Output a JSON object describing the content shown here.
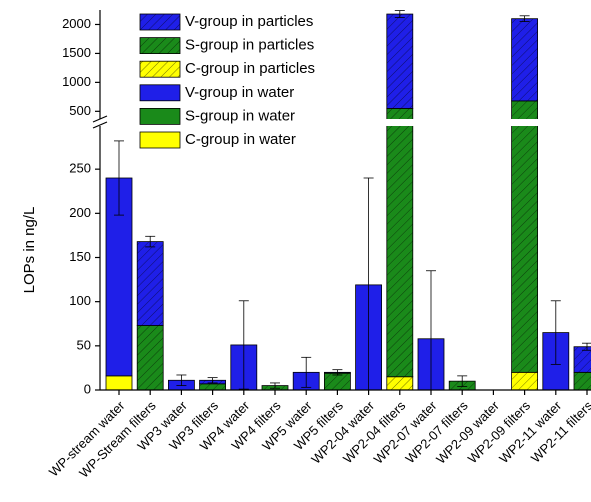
{
  "chart_data": {
    "type": "bar",
    "stacked": true,
    "y_label": "LOPs in ng/L",
    "categories": [
      "WP-stream water",
      "WP-Stream filters",
      "WP3 water",
      "WP3 filters",
      "WP4 water",
      "WP4 filters",
      "WP5 water",
      "WP5 filters",
      "WP2-04 water",
      "WP2-04 filters",
      "WP2-07 water",
      "WP2-07 filters",
      "WP2-09 water",
      "WP2-09 filters",
      "WP2-11 water",
      "WP2-11 filters"
    ],
    "series": [
      {
        "name": "V-group in particles",
        "color": "#1f1fe8",
        "hatch": true,
        "values": [
          null,
          95,
          null,
          4,
          null,
          0,
          null,
          1,
          null,
          1630,
          null,
          0,
          null,
          1420,
          null,
          29
        ]
      },
      {
        "name": "S-group in particles",
        "color": "#1a8a1a",
        "hatch": true,
        "values": [
          null,
          73,
          null,
          7,
          null,
          5,
          null,
          19,
          null,
          535,
          null,
          10,
          null,
          660,
          null,
          20
        ]
      },
      {
        "name": "C-group in particles",
        "color": "#ffff00",
        "hatch": true,
        "values": [
          null,
          0,
          null,
          0,
          null,
          0,
          null,
          0,
          null,
          15,
          null,
          0,
          null,
          20,
          null,
          0
        ]
      },
      {
        "name": "V-group in water",
        "color": "#1f1fe8",
        "hatch": false,
        "values": [
          224,
          null,
          11,
          null,
          51,
          null,
          20,
          null,
          119,
          null,
          58,
          null,
          null,
          null,
          65,
          null
        ]
      },
      {
        "name": "S-group in water",
        "color": "#1a8a1a",
        "hatch": false,
        "values": [
          0,
          null,
          0,
          null,
          0,
          null,
          0,
          null,
          0,
          null,
          0,
          null,
          null,
          null,
          0,
          null
        ]
      },
      {
        "name": "C-group in water",
        "color": "#ffff00",
        "hatch": false,
        "values": [
          16,
          null,
          0,
          null,
          0,
          null,
          0,
          null,
          0,
          null,
          0,
          null,
          null,
          null,
          0,
          null
        ]
      }
    ],
    "errors": [
      42,
      6,
      6,
      3,
      50,
      3,
      17,
      3,
      121,
      60,
      77,
      6,
      null,
      50,
      36,
      4
    ],
    "ylim": [
      0,
      2250
    ],
    "ybreak": [
      300,
      350
    ],
    "yticks": [
      0,
      50,
      100,
      150,
      200,
      250,
      500,
      1000,
      1500,
      2000
    ],
    "legend": "upper left"
  }
}
